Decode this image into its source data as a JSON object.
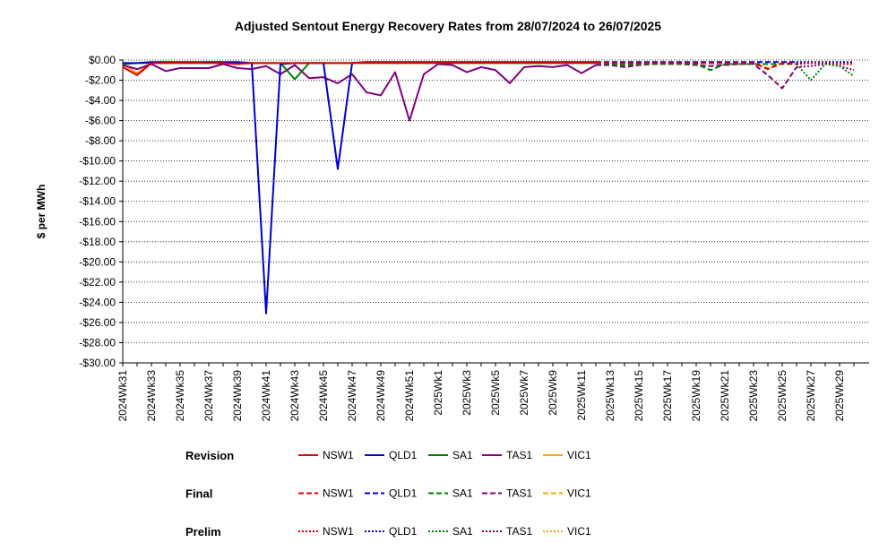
{
  "chart_data": {
    "type": "line",
    "title": "Adjusted Sentout Energy Recovery Rates from 28/07/2024 to 26/07/2025",
    "y_label": "$ per MWh",
    "categories": [
      "2024Wk31",
      null,
      "2024Wk33",
      null,
      "2024Wk35",
      null,
      "2024Wk37",
      null,
      "2024Wk39",
      null,
      "2024Wk41",
      null,
      "2024Wk43",
      null,
      "2024Wk45",
      null,
      "2024Wk47",
      null,
      "2024Wk49",
      null,
      "2024Wk51",
      null,
      "2025Wk1",
      null,
      "2025Wk3",
      null,
      "2025Wk5",
      null,
      "2025Wk7",
      null,
      "2025Wk9",
      null,
      "2025Wk11",
      null,
      "2025Wk13",
      null,
      "2025Wk15",
      null,
      "2025Wk17",
      null,
      "2025Wk19",
      null,
      "2025Wk21",
      null,
      "2025Wk23",
      null,
      "2025Wk25",
      null,
      "2025Wk27",
      null,
      "2025Wk29",
      null
    ],
    "ylim": [
      -30,
      0
    ],
    "yticks": [
      {
        "value": 0,
        "label": "$0.00"
      },
      {
        "value": -2,
        "label": "-$2.00"
      },
      {
        "value": -4,
        "label": "-$4.00"
      },
      {
        "value": -6,
        "label": "-$6.00"
      },
      {
        "value": -8,
        "label": "-$8.00"
      },
      {
        "value": -10,
        "label": "-$10.00"
      },
      {
        "value": -12,
        "label": "-$12.00"
      },
      {
        "value": -14,
        "label": "-$14.00"
      },
      {
        "value": -16,
        "label": "-$16.00"
      },
      {
        "value": -18,
        "label": "-$18.00"
      },
      {
        "value": -20,
        "label": "-$20.00"
      },
      {
        "value": -22,
        "label": "-$22.00"
      },
      {
        "value": -24,
        "label": "-$24.00"
      },
      {
        "value": -26,
        "label": "-$26.00"
      },
      {
        "value": -28,
        "label": "-$28.00"
      },
      {
        "value": -30,
        "label": "-$30.00"
      }
    ],
    "grid": true,
    "series_groups": [
      {
        "name": "Revision",
        "dash": "solid",
        "series": [
          {
            "name": "NSW1",
            "color": "#e00000",
            "values": [
              -0.7,
              -1.5,
              -0.3,
              -0.3,
              -0.2,
              -0.2,
              -0.3,
              -0.3,
              -0.4,
              -0.3,
              -0.3,
              -0.3,
              -0.3,
              -0.3,
              -0.3,
              -0.3,
              -0.3,
              -0.2,
              -0.2,
              -0.2,
              -0.2,
              -0.2,
              -0.2,
              -0.2,
              -0.2,
              -0.2,
              -0.2,
              -0.2,
              -0.2,
              -0.2,
              -0.2,
              -0.2,
              -0.2,
              -0.2,
              null,
              null,
              null,
              null,
              null,
              null,
              null,
              null,
              null,
              null,
              null,
              null,
              null,
              null,
              null,
              null,
              null,
              null
            ]
          },
          {
            "name": "QLD1",
            "color": "#0000d0",
            "values": [
              -0.3,
              -0.3,
              -0.2,
              -0.2,
              -0.2,
              -0.2,
              -0.2,
              -0.2,
              -0.2,
              -0.3,
              -25.1,
              -0.4,
              -0.3,
              -0.3,
              -0.3,
              -10.8,
              -0.3,
              -0.2,
              -0.2,
              -0.2,
              -0.2,
              -0.2,
              -0.2,
              -0.2,
              -0.2,
              -0.2,
              -0.2,
              -0.2,
              -0.2,
              -0.2,
              -0.2,
              -0.2,
              -0.2,
              -0.2,
              null,
              null,
              null,
              null,
              null,
              null,
              null,
              null,
              null,
              null,
              null,
              null,
              null,
              null,
              null,
              null,
              null,
              null
            ]
          },
          {
            "name": "SA1",
            "color": "#008000",
            "values": [
              -0.4,
              -0.3,
              -0.3,
              -0.3,
              -0.3,
              -0.3,
              -0.3,
              -0.3,
              -0.3,
              -0.3,
              -0.3,
              -0.3,
              -1.9,
              -0.3,
              -0.3,
              -0.3,
              -0.3,
              -0.3,
              -0.3,
              -0.3,
              -0.3,
              -0.3,
              -0.3,
              -0.3,
              -0.3,
              -0.3,
              -0.3,
              -0.3,
              -0.3,
              -0.3,
              -0.3,
              -0.3,
              -0.3,
              -0.3,
              null,
              null,
              null,
              null,
              null,
              null,
              null,
              null,
              null,
              null,
              null,
              null,
              null,
              null,
              null,
              null,
              null,
              null
            ]
          },
          {
            "name": "TAS1",
            "color": "#800080",
            "values": [
              -0.5,
              -0.9,
              -0.4,
              -1.1,
              -0.8,
              -0.8,
              -0.8,
              -0.4,
              -0.8,
              -0.9,
              -0.6,
              -1.4,
              -0.5,
              -1.8,
              -1.7,
              -2.3,
              -1.4,
              -3.2,
              -3.5,
              -1.2,
              -6.0,
              -1.4,
              -0.4,
              -0.5,
              -1.2,
              -0.7,
              -1.0,
              -2.3,
              -0.7,
              -0.6,
              -0.7,
              -0.5,
              -1.3,
              -0.5,
              null,
              null,
              null,
              null,
              null,
              null,
              null,
              null,
              null,
              null,
              null,
              null,
              null,
              null,
              null,
              null,
              null,
              null
            ]
          },
          {
            "name": "VIC1",
            "color": "#ffa500",
            "values": [
              -0.4,
              -1.3,
              -0.3,
              -0.3,
              -0.3,
              -0.3,
              -0.3,
              -0.3,
              -0.3,
              -0.3,
              -0.3,
              -0.3,
              -0.3,
              -0.3,
              -0.3,
              -0.3,
              -0.3,
              -0.3,
              -0.3,
              -0.3,
              -0.3,
              -0.3,
              -0.3,
              -0.3,
              -0.3,
              -0.3,
              -0.3,
              -0.3,
              -0.3,
              -0.3,
              -0.3,
              -0.3,
              -0.3,
              -0.3,
              null,
              null,
              null,
              null,
              null,
              null,
              null,
              null,
              null,
              null,
              null,
              null,
              null,
              null,
              null,
              null,
              null,
              null
            ]
          }
        ]
      },
      {
        "name": "Final",
        "dash": "dashed",
        "series": [
          {
            "name": "NSW1",
            "color": "#e00000",
            "values": [
              null,
              null,
              null,
              null,
              null,
              null,
              null,
              null,
              null,
              null,
              null,
              null,
              null,
              null,
              null,
              null,
              null,
              null,
              null,
              null,
              null,
              null,
              null,
              null,
              null,
              null,
              null,
              null,
              null,
              null,
              null,
              null,
              null,
              -0.2,
              -0.3,
              -0.3,
              -0.3,
              -0.3,
              -0.3,
              -0.3,
              -0.3,
              -0.3,
              -0.3,
              -0.3,
              -0.3,
              -0.9,
              -0.3,
              -0.4,
              null,
              null,
              null,
              null
            ]
          },
          {
            "name": "QLD1",
            "color": "#0000d0",
            "values": [
              null,
              null,
              null,
              null,
              null,
              null,
              null,
              null,
              null,
              null,
              null,
              null,
              null,
              null,
              null,
              null,
              null,
              null,
              null,
              null,
              null,
              null,
              null,
              null,
              null,
              null,
              null,
              null,
              null,
              null,
              null,
              null,
              null,
              -0.2,
              -0.2,
              -0.2,
              -0.2,
              -0.2,
              -0.2,
              -0.2,
              -0.2,
              -0.2,
              -0.2,
              -0.2,
              -0.2,
              -0.2,
              -0.2,
              -0.2,
              null,
              null,
              null,
              null
            ]
          },
          {
            "name": "SA1",
            "color": "#008000",
            "values": [
              null,
              null,
              null,
              null,
              null,
              null,
              null,
              null,
              null,
              null,
              null,
              null,
              null,
              null,
              null,
              null,
              null,
              null,
              null,
              null,
              null,
              null,
              null,
              null,
              null,
              null,
              null,
              null,
              null,
              null,
              null,
              null,
              null,
              -0.3,
              -0.4,
              -0.5,
              -0.4,
              -0.4,
              -0.4,
              -0.4,
              -0.4,
              -1.0,
              -0.4,
              -0.4,
              -0.4,
              -0.4,
              -0.4,
              -0.4,
              null,
              null,
              null,
              null
            ]
          },
          {
            "name": "TAS1",
            "color": "#800080",
            "values": [
              null,
              null,
              null,
              null,
              null,
              null,
              null,
              null,
              null,
              null,
              null,
              null,
              null,
              null,
              null,
              null,
              null,
              null,
              null,
              null,
              null,
              null,
              null,
              null,
              null,
              null,
              null,
              null,
              null,
              null,
              null,
              null,
              null,
              -0.5,
              -0.5,
              -0.7,
              -0.5,
              -0.4,
              -0.4,
              -0.4,
              -0.5,
              -0.6,
              -0.5,
              -0.4,
              -0.4,
              -1.5,
              -2.8,
              -0.7,
              null,
              null,
              null,
              null
            ]
          },
          {
            "name": "VIC1",
            "color": "#ffa500",
            "values": [
              null,
              null,
              null,
              null,
              null,
              null,
              null,
              null,
              null,
              null,
              null,
              null,
              null,
              null,
              null,
              null,
              null,
              null,
              null,
              null,
              null,
              null,
              null,
              null,
              null,
              null,
              null,
              null,
              null,
              null,
              null,
              null,
              null,
              -0.3,
              -0.3,
              -0.3,
              -0.3,
              -0.3,
              -0.3,
              -0.3,
              -0.3,
              -0.3,
              -0.3,
              -0.3,
              -0.3,
              -0.8,
              -0.3,
              -0.3,
              null,
              null,
              null,
              null
            ]
          }
        ]
      },
      {
        "name": "Prelim",
        "dash": "dotted",
        "series": [
          {
            "name": "NSW1",
            "color": "#e00000",
            "values": [
              null,
              null,
              null,
              null,
              null,
              null,
              null,
              null,
              null,
              null,
              null,
              null,
              null,
              null,
              null,
              null,
              null,
              null,
              null,
              null,
              null,
              null,
              null,
              null,
              null,
              null,
              null,
              null,
              null,
              null,
              null,
              null,
              null,
              null,
              null,
              null,
              null,
              null,
              null,
              null,
              null,
              null,
              null,
              null,
              null,
              null,
              null,
              -0.4,
              -0.3,
              -0.3,
              -0.4,
              -0.4
            ]
          },
          {
            "name": "QLD1",
            "color": "#0000d0",
            "values": [
              null,
              null,
              null,
              null,
              null,
              null,
              null,
              null,
              null,
              null,
              null,
              null,
              null,
              null,
              null,
              null,
              null,
              null,
              null,
              null,
              null,
              null,
              null,
              null,
              null,
              null,
              null,
              null,
              null,
              null,
              null,
              null,
              null,
              null,
              null,
              null,
              null,
              null,
              null,
              null,
              null,
              null,
              null,
              null,
              null,
              null,
              null,
              -0.2,
              -0.2,
              -0.2,
              -0.2,
              -0.2
            ]
          },
          {
            "name": "SA1",
            "color": "#008000",
            "values": [
              null,
              null,
              null,
              null,
              null,
              null,
              null,
              null,
              null,
              null,
              null,
              null,
              null,
              null,
              null,
              null,
              null,
              null,
              null,
              null,
              null,
              null,
              null,
              null,
              null,
              null,
              null,
              null,
              null,
              null,
              null,
              null,
              null,
              null,
              null,
              null,
              null,
              null,
              null,
              null,
              null,
              null,
              null,
              null,
              null,
              null,
              null,
              -0.4,
              -2.0,
              -0.4,
              -0.6,
              -1.6
            ]
          },
          {
            "name": "TAS1",
            "color": "#800080",
            "values": [
              null,
              null,
              null,
              null,
              null,
              null,
              null,
              null,
              null,
              null,
              null,
              null,
              null,
              null,
              null,
              null,
              null,
              null,
              null,
              null,
              null,
              null,
              null,
              null,
              null,
              null,
              null,
              null,
              null,
              null,
              null,
              null,
              null,
              null,
              null,
              null,
              null,
              null,
              null,
              null,
              null,
              null,
              null,
              null,
              null,
              null,
              null,
              -0.7,
              -0.6,
              -0.4,
              -0.6,
              -1.0
            ]
          },
          {
            "name": "VIC1",
            "color": "#ffa500",
            "values": [
              null,
              null,
              null,
              null,
              null,
              null,
              null,
              null,
              null,
              null,
              null,
              null,
              null,
              null,
              null,
              null,
              null,
              null,
              null,
              null,
              null,
              null,
              null,
              null,
              null,
              null,
              null,
              null,
              null,
              null,
              null,
              null,
              null,
              null,
              null,
              null,
              null,
              null,
              null,
              null,
              null,
              null,
              null,
              null,
              null,
              null,
              null,
              -0.3,
              -0.3,
              -0.3,
              -0.3,
              -0.3
            ]
          }
        ]
      }
    ]
  }
}
